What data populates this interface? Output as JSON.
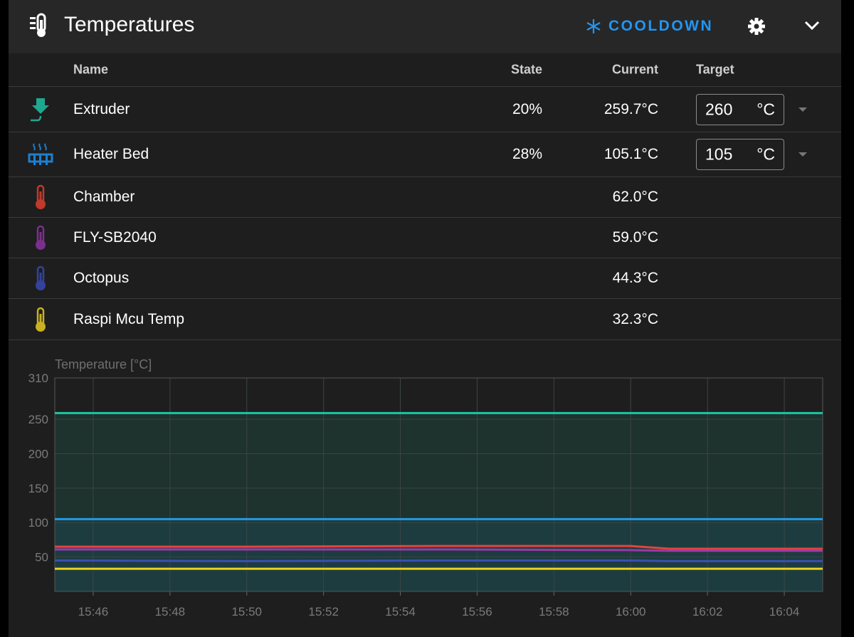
{
  "header": {
    "title": "Temperatures",
    "action": "COOLDOWN"
  },
  "table": {
    "columns": [
      "Name",
      "State",
      "Current",
      "Target"
    ],
    "rows": [
      {
        "name": "Extruder",
        "state": "20%",
        "current": "259.7°C",
        "target": "260",
        "unit": "°C"
      },
      {
        "name": "Heater Bed",
        "state": "28%",
        "current": "105.1°C",
        "target": "105",
        "unit": "°C"
      },
      {
        "name": "Chamber",
        "current": "62.0°C"
      },
      {
        "name": "FLY-SB2040",
        "current": "59.0°C"
      },
      {
        "name": "Octopus",
        "current": "44.3°C"
      },
      {
        "name": "Raspi Mcu Temp",
        "current": "32.3°C"
      }
    ]
  },
  "chart_data": {
    "type": "line",
    "y_label": "Temperature [°C]",
    "x": [
      "15:45",
      "15:50",
      "15:55",
      "16:00",
      "16:01",
      "16:05"
    ],
    "xlim": [
      "15:45",
      "16:05"
    ],
    "xticks": [
      "15:46",
      "15:48",
      "15:50",
      "15:52",
      "15:54",
      "15:56",
      "15:58",
      "16:00",
      "16:02",
      "16:04"
    ],
    "ylim": [
      0,
      310
    ],
    "yticks": [
      50,
      100,
      150,
      200,
      250,
      310
    ],
    "grid": true,
    "series": [
      {
        "name": "Extruder",
        "color": "#1fc4a4",
        "area": true,
        "values": [
          259,
          259,
          259,
          259,
          259,
          259
        ]
      },
      {
        "name": "Heater Bed",
        "color": "#1e9be6",
        "area": true,
        "values": [
          105,
          105,
          105,
          105,
          105,
          105
        ]
      },
      {
        "name": "Chamber",
        "color": "#e2453c",
        "values": [
          65,
          65,
          66,
          66,
          62,
          62
        ]
      },
      {
        "name": "FLY-SB2040",
        "color": "#9a3aa8",
        "values": [
          61,
          61,
          61,
          60,
          59,
          59
        ]
      },
      {
        "name": "Octopus",
        "color": "#3b4fb0",
        "values": [
          45,
          44,
          45,
          45,
          44,
          44
        ]
      },
      {
        "name": "Raspi Mcu Temp",
        "color": "#ecd320",
        "values": [
          33,
          33,
          33,
          33,
          33,
          33
        ]
      }
    ]
  }
}
